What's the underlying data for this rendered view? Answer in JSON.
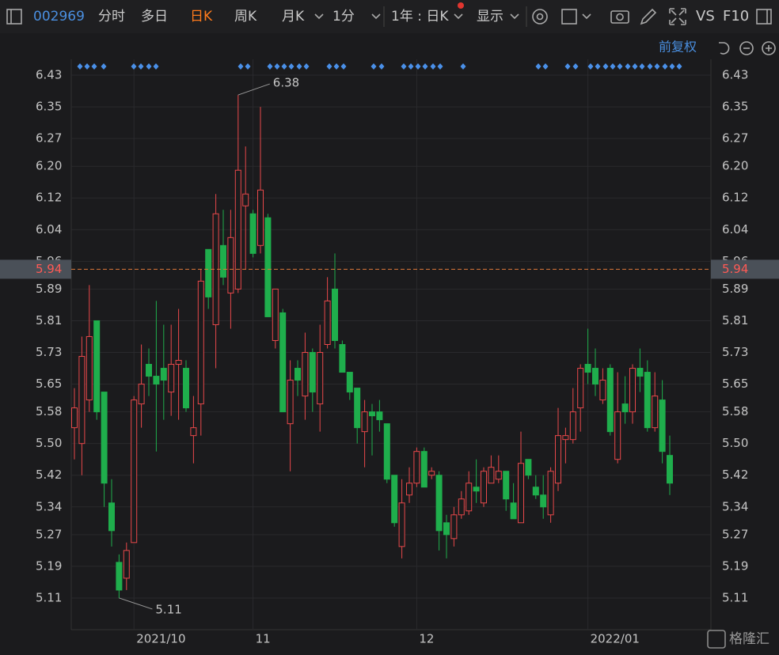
{
  "ui": {
    "code": "002969",
    "tabs": [
      "分时",
      "多日",
      "日K",
      "周K",
      "月K",
      "1分"
    ],
    "period": "1年 : 日K",
    "display": "显示",
    "vs": "VS",
    "f10": "F10",
    "adjust": "前复权",
    "watermark": "格隆汇"
  },
  "chart_data": {
    "type": "candlestick",
    "categories": [
      null,
      null,
      null,
      null,
      null,
      null,
      null,
      null,
      "2021/10",
      null,
      null,
      null,
      null,
      null,
      null,
      null,
      null,
      null,
      null,
      null,
      null,
      null,
      null,
      null,
      "11",
      null,
      null,
      null,
      null,
      null,
      null,
      null,
      null,
      null,
      null,
      null,
      null,
      null,
      null,
      null,
      null,
      null,
      null,
      null,
      null,
      null,
      "12",
      null,
      null,
      null,
      null,
      null,
      null,
      null,
      null,
      null,
      null,
      null,
      null,
      null,
      null,
      null,
      null,
      null,
      null,
      null,
      null,
      null,
      null,
      "2022/01",
      null,
      null,
      null,
      null,
      null,
      null,
      null,
      null,
      null,
      null,
      null
    ],
    "open": [
      5.54,
      5.5,
      5.61,
      5.81,
      5.63,
      5.35,
      5.2,
      5.16,
      5.25,
      5.6,
      5.7,
      5.67,
      5.69,
      5.63,
      5.7,
      5.69,
      5.52,
      5.6,
      5.99,
      5.8,
      6.0,
      5.88,
      5.89,
      6.1,
      6.08,
      6.0,
      6.07,
      5.76,
      5.83,
      5.55,
      5.69,
      5.62,
      5.73,
      5.6,
      5.75,
      5.89,
      5.75,
      5.68,
      5.64,
      5.53,
      5.58,
      5.58,
      5.55,
      5.42,
      5.24,
      5.37,
      5.4,
      5.48,
      5.42,
      5.42,
      5.3,
      5.26,
      5.32,
      5.33,
      5.39,
      5.35,
      5.4,
      5.41,
      5.43,
      5.35,
      5.3,
      5.46,
      5.39,
      5.37,
      5.32,
      5.4,
      5.51,
      5.51,
      5.59,
      5.7,
      5.69,
      5.61,
      5.69,
      5.46,
      5.6,
      5.58,
      5.69,
      5.68,
      5.54,
      5.61,
      5.47
    ],
    "high": [
      5.64,
      5.77,
      5.9,
      5.81,
      5.63,
      5.41,
      5.22,
      5.25,
      5.62,
      5.75,
      5.74,
      5.86,
      5.8,
      5.8,
      5.84,
      5.71,
      5.62,
      5.94,
      5.99,
      6.13,
      6.09,
      6.09,
      6.38,
      6.25,
      6.09,
      6.35,
      6.08,
      5.89,
      5.84,
      5.71,
      5.71,
      5.78,
      5.74,
      5.8,
      5.92,
      5.98,
      5.76,
      5.68,
      5.64,
      5.61,
      5.6,
      5.61,
      5.55,
      5.42,
      5.41,
      5.44,
      5.49,
      5.49,
      5.44,
      5.43,
      5.32,
      5.34,
      5.38,
      5.43,
      5.46,
      5.44,
      5.47,
      5.47,
      5.43,
      5.4,
      5.53,
      5.46,
      5.42,
      5.42,
      5.44,
      5.59,
      5.54,
      5.64,
      5.7,
      5.79,
      5.74,
      5.69,
      5.7,
      5.68,
      5.67,
      5.7,
      5.74,
      5.71,
      5.68,
      5.66,
      5.52
    ],
    "low": [
      5.46,
      5.42,
      5.58,
      5.56,
      5.34,
      5.24,
      5.11,
      5.13,
      5.25,
      5.54,
      5.62,
      5.48,
      5.56,
      5.57,
      5.56,
      5.58,
      5.45,
      5.52,
      5.84,
      5.69,
      5.9,
      5.79,
      5.88,
      5.94,
      5.97,
      5.98,
      5.82,
      5.74,
      5.58,
      5.43,
      5.62,
      5.56,
      5.58,
      5.53,
      5.74,
      5.74,
      5.68,
      5.61,
      5.5,
      5.44,
      5.47,
      5.53,
      5.4,
      5.29,
      5.21,
      5.35,
      5.39,
      5.39,
      5.41,
      5.23,
      5.21,
      5.24,
      5.31,
      5.32,
      5.35,
      5.34,
      5.4,
      5.4,
      5.33,
      5.31,
      5.3,
      5.41,
      5.36,
      5.31,
      5.3,
      5.38,
      5.45,
      5.5,
      5.53,
      5.65,
      5.62,
      5.6,
      5.52,
      5.45,
      5.55,
      5.55,
      5.63,
      5.53,
      5.53,
      5.45,
      5.37
    ],
    "close": [
      5.59,
      5.72,
      5.77,
      5.58,
      5.4,
      5.28,
      5.13,
      5.23,
      5.61,
      5.65,
      5.67,
      5.65,
      5.66,
      5.7,
      5.71,
      5.59,
      5.54,
      5.91,
      5.87,
      6.08,
      5.92,
      6.02,
      6.19,
      6.13,
      5.98,
      6.14,
      5.82,
      5.89,
      5.58,
      5.66,
      5.66,
      5.73,
      5.63,
      5.73,
      5.86,
      5.76,
      5.68,
      5.63,
      5.54,
      5.58,
      5.57,
      5.56,
      5.41,
      5.3,
      5.35,
      5.4,
      5.48,
      5.39,
      5.43,
      5.28,
      5.27,
      5.32,
      5.36,
      5.4,
      5.38,
      5.43,
      5.44,
      5.43,
      5.36,
      5.31,
      5.45,
      5.42,
      5.37,
      5.34,
      5.43,
      5.52,
      5.52,
      5.58,
      5.69,
      5.68,
      5.65,
      5.66,
      5.53,
      5.58,
      5.58,
      5.69,
      5.67,
      5.54,
      5.62,
      5.48,
      5.4
    ],
    "up_color": "#e8484a",
    "down_color": "#1fae4c",
    "ylim": [
      5.03,
      6.47
    ],
    "yticks": [
      6.43,
      6.35,
      6.27,
      {
        "value": 6.2,
        "label": "6.20"
      },
      6.12,
      6.04,
      5.96,
      5.89,
      5.81,
      5.73,
      5.65,
      5.58,
      {
        "value": 5.5,
        "label": "5.50"
      },
      5.42,
      5.34,
      5.27,
      5.19,
      5.11
    ],
    "crosshair": 5.94,
    "grid": true
  }
}
